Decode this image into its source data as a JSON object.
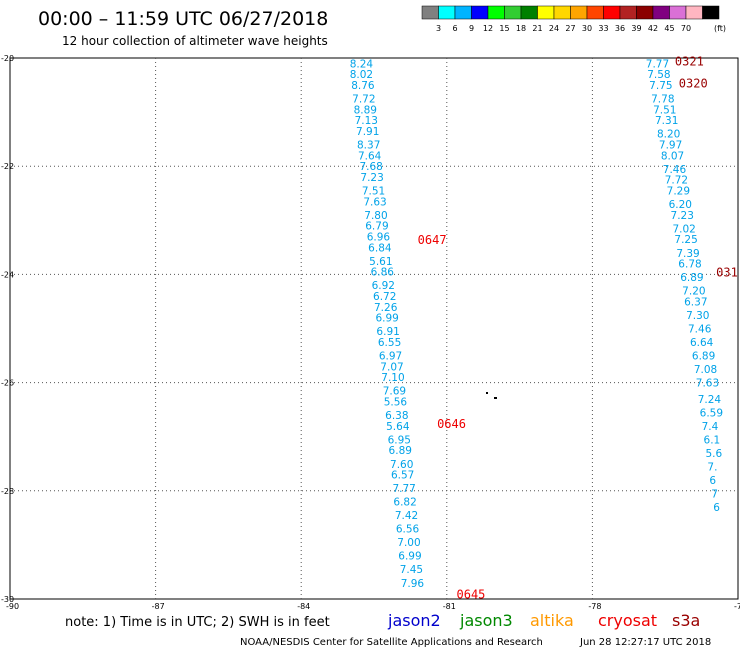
{
  "header": {
    "title": "00:00 – 11:59 UTC 06/27/2018",
    "subtitle": "12 hour collection of altimeter wave heights"
  },
  "colorbar": {
    "unit": "(ft)",
    "labels": [
      "3",
      "6",
      "9",
      "12",
      "15",
      "18",
      "21",
      "24",
      "27",
      "30",
      "33",
      "36",
      "39",
      "42",
      "45",
      "70"
    ],
    "colors": [
      "#808080",
      "#00ffff",
      "#00b4ff",
      "#0000ff",
      "#00ff00",
      "#32cd32",
      "#008000",
      "#ffff00",
      "#ffd700",
      "#ffa500",
      "#ff4500",
      "#ff0000",
      "#b22222",
      "#8b0000",
      "#800080",
      "#da70d6",
      "#ffb6c1",
      "#000000"
    ]
  },
  "footer": {
    "note": "note:  1) Time is in UTC;  2) SWH is in feet",
    "credit": "NOAA/NESDIS Center for Satellite Applications and Research",
    "timestamp": "Jun 28 12:27:17 UTC 2018"
  },
  "legend": [
    {
      "name": "jason2",
      "color": "#0000cc"
    },
    {
      "name": "jason3",
      "color": "#008800"
    },
    {
      "name": "altika",
      "color": "#ff9900"
    },
    {
      "name": "cryosat",
      "color": "#ee0000"
    },
    {
      "name": "s3a",
      "color": "#990000"
    }
  ],
  "chart_data": {
    "type": "scatter",
    "xlim": [
      -90,
      -75
    ],
    "ylim": [
      -30,
      -20
    ],
    "x_ticks": [
      "-90",
      "-87",
      "-84",
      "-81",
      "-78",
      "-75"
    ],
    "y_ticks": [
      "-20",
      "-22",
      "-24",
      "-26",
      "-28",
      "-30"
    ],
    "grid": true,
    "value_color": "#00a2e8",
    "tracks": [
      {
        "name": "west",
        "points": [
          {
            "x": -83.0,
            "y": -20.1,
            "v": "8.24"
          },
          {
            "x": -83.0,
            "y": -20.3,
            "v": "8.02"
          },
          {
            "x": -82.97,
            "y": -20.5,
            "v": "8.76"
          },
          {
            "x": -82.95,
            "y": -20.75,
            "v": "7.72"
          },
          {
            "x": -82.92,
            "y": -20.95,
            "v": "8.89"
          },
          {
            "x": -82.9,
            "y": -21.15,
            "v": "7.13"
          },
          {
            "x": -82.87,
            "y": -21.35,
            "v": "7.91"
          },
          {
            "x": -82.85,
            "y": -21.6,
            "v": "8.37"
          },
          {
            "x": -82.83,
            "y": -21.8,
            "v": "7.64"
          },
          {
            "x": -82.8,
            "y": -22.0,
            "v": "7.68"
          },
          {
            "x": -82.78,
            "y": -22.2,
            "v": "7.23"
          },
          {
            "x": -82.75,
            "y": -22.45,
            "v": "7.51"
          },
          {
            "x": -82.72,
            "y": -22.65,
            "v": "7.63"
          },
          {
            "x": -82.7,
            "y": -22.9,
            "v": "7.80"
          },
          {
            "x": -82.68,
            "y": -23.1,
            "v": "6.79"
          },
          {
            "x": -82.65,
            "y": -23.3,
            "v": "6.96"
          },
          {
            "x": -82.62,
            "y": -23.5,
            "v": "6.84"
          },
          {
            "x": -82.6,
            "y": -23.75,
            "v": "5.61"
          },
          {
            "x": -82.57,
            "y": -23.95,
            "v": "6.86"
          },
          {
            "x": -82.55,
            "y": -24.2,
            "v": "6.92"
          },
          {
            "x": -82.52,
            "y": -24.4,
            "v": "6.72"
          },
          {
            "x": -82.5,
            "y": -24.6,
            "v": "7.26"
          },
          {
            "x": -82.47,
            "y": -24.8,
            "v": "6.99"
          },
          {
            "x": -82.45,
            "y": -25.05,
            "v": "6.91"
          },
          {
            "x": -82.42,
            "y": -25.25,
            "v": "6.55"
          },
          {
            "x": -82.4,
            "y": -25.5,
            "v": "6.97"
          },
          {
            "x": -82.37,
            "y": -25.7,
            "v": "7.07"
          },
          {
            "x": -82.35,
            "y": -25.9,
            "v": "7.10"
          },
          {
            "x": -82.32,
            "y": -26.15,
            "v": "7.69"
          },
          {
            "x": -82.3,
            "y": -26.35,
            "v": "5.56"
          },
          {
            "x": -82.27,
            "y": -26.6,
            "v": "6.38"
          },
          {
            "x": -82.25,
            "y": -26.8,
            "v": "5.64"
          },
          {
            "x": -82.22,
            "y": -27.05,
            "v": "6.95"
          },
          {
            "x": -82.2,
            "y": -27.25,
            "v": "6.89"
          },
          {
            "x": -82.17,
            "y": -27.5,
            "v": "7.60"
          },
          {
            "x": -82.15,
            "y": -27.7,
            "v": "6.57"
          },
          {
            "x": -82.12,
            "y": -27.95,
            "v": "7.77"
          },
          {
            "x": -82.1,
            "y": -28.2,
            "v": "6.82"
          },
          {
            "x": -82.07,
            "y": -28.45,
            "v": "7.42"
          },
          {
            "x": -82.05,
            "y": -28.7,
            "v": "6.56"
          },
          {
            "x": -82.02,
            "y": -28.95,
            "v": "7.00"
          },
          {
            "x": -82.0,
            "y": -29.2,
            "v": "6.99"
          },
          {
            "x": -81.97,
            "y": -29.45,
            "v": "7.45"
          },
          {
            "x": -81.95,
            "y": -29.7,
            "v": "7.96"
          }
        ]
      },
      {
        "name": "east",
        "points": [
          {
            "x": -76.9,
            "y": -20.1,
            "v": "7.77"
          },
          {
            "x": -76.87,
            "y": -20.3,
            "v": "7.58"
          },
          {
            "x": -76.83,
            "y": -20.5,
            "v": "7.75"
          },
          {
            "x": -76.79,
            "y": -20.75,
            "v": "7.78"
          },
          {
            "x": -76.75,
            "y": -20.95,
            "v": "7.51"
          },
          {
            "x": -76.71,
            "y": -21.15,
            "v": "7.31"
          },
          {
            "x": -76.67,
            "y": -21.4,
            "v": "8.20"
          },
          {
            "x": -76.63,
            "y": -21.6,
            "v": "7.97"
          },
          {
            "x": -76.59,
            "y": -21.8,
            "v": "8.07"
          },
          {
            "x": -76.55,
            "y": -22.05,
            "v": "7.46"
          },
          {
            "x": -76.51,
            "y": -22.25,
            "v": "7.72"
          },
          {
            "x": -76.47,
            "y": -22.45,
            "v": "7.29"
          },
          {
            "x": -76.43,
            "y": -22.7,
            "v": "6.20"
          },
          {
            "x": -76.39,
            "y": -22.9,
            "v": "7.23"
          },
          {
            "x": -76.35,
            "y": -23.15,
            "v": "7.02"
          },
          {
            "x": -76.31,
            "y": -23.35,
            "v": "7.25"
          },
          {
            "x": -76.27,
            "y": -23.6,
            "v": "7.39"
          },
          {
            "x": -76.23,
            "y": -23.8,
            "v": "6.78"
          },
          {
            "x": -76.19,
            "y": -24.05,
            "v": "6.89"
          },
          {
            "x": -76.15,
            "y": -24.3,
            "v": "7.20"
          },
          {
            "x": -76.11,
            "y": -24.5,
            "v": "6.37"
          },
          {
            "x": -76.07,
            "y": -24.75,
            "v": "7.30"
          },
          {
            "x": -76.03,
            "y": -25.0,
            "v": "7.46"
          },
          {
            "x": -75.99,
            "y": -25.25,
            "v": "6.64"
          },
          {
            "x": -75.95,
            "y": -25.5,
            "v": "6.89"
          },
          {
            "x": -75.91,
            "y": -25.75,
            "v": "7.08"
          },
          {
            "x": -75.87,
            "y": -26.0,
            "v": "7.63"
          },
          {
            "x": -75.83,
            "y": -26.3,
            "v": "7.24"
          },
          {
            "x": -75.79,
            "y": -26.55,
            "v": "6.59"
          },
          {
            "x": -75.75,
            "y": -26.8,
            "v": "7.4"
          },
          {
            "x": -75.71,
            "y": -27.05,
            "v": "6.1"
          },
          {
            "x": -75.67,
            "y": -27.3,
            "v": "5.6"
          },
          {
            "x": -75.63,
            "y": -27.55,
            "v": "7."
          },
          {
            "x": -75.59,
            "y": -27.8,
            "v": "6"
          },
          {
            "x": -75.55,
            "y": -28.05,
            "v": "7"
          },
          {
            "x": -75.51,
            "y": -28.3,
            "v": "6"
          }
        ]
      }
    ],
    "time_labels": [
      {
        "x": -81.6,
        "y": -23.35,
        "text": "0647",
        "color": "#ee0000"
      },
      {
        "x": -81.2,
        "y": -26.75,
        "text": "0646",
        "color": "#ee0000"
      },
      {
        "x": -80.8,
        "y": -29.9,
        "text": "0645",
        "color": "#ee0000"
      },
      {
        "x": -76.3,
        "y": -20.05,
        "text": "0321",
        "color": "#990000"
      },
      {
        "x": -76.22,
        "y": -20.45,
        "text": "0320",
        "color": "#990000"
      },
      {
        "x": -75.45,
        "y": -23.95,
        "text": "031",
        "color": "#990000"
      }
    ]
  }
}
